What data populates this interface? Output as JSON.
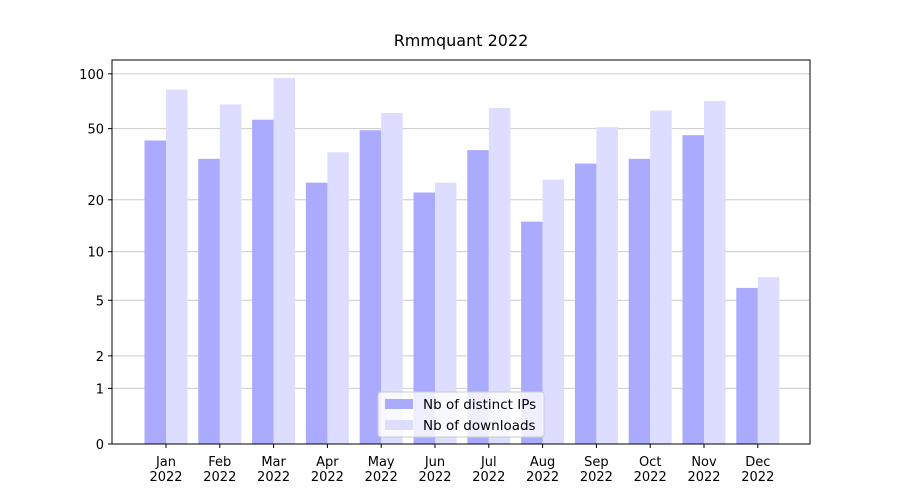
{
  "chart_data": {
    "type": "bar",
    "title": "Rmmquant 2022",
    "categories": [
      "Jan 2022",
      "Feb 2022",
      "Mar 2022",
      "Apr 2022",
      "May 2022",
      "Jun 2022",
      "Jul 2022",
      "Aug 2022",
      "Sep 2022",
      "Oct 2022",
      "Nov 2022",
      "Dec 2022"
    ],
    "series": [
      {
        "name": "Nb of distinct IPs",
        "color": "#aaaaff",
        "values": [
          43,
          34,
          56,
          25,
          49,
          22,
          38,
          15,
          32,
          34,
          46,
          6
        ]
      },
      {
        "name": "Nb of downloads",
        "color": "#ddddff",
        "values": [
          82,
          68,
          95,
          37,
          61,
          25,
          65,
          26,
          51,
          63,
          71,
          7
        ]
      }
    ],
    "yscale": "log1p",
    "ylim": [
      0,
      119
    ],
    "yticks": [
      0,
      1,
      2,
      5,
      10,
      20,
      50,
      100
    ],
    "grid": true,
    "legend": "lower center"
  }
}
